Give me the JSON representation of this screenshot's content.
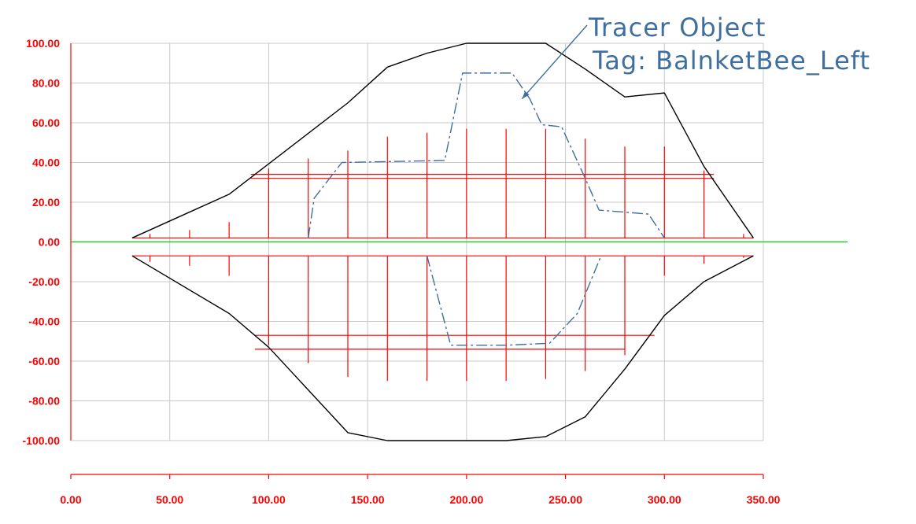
{
  "chart_data": {
    "type": "line",
    "title": "",
    "xlabel": "",
    "ylabel": "",
    "xlim": [
      0,
      350
    ],
    "ylim": [
      -100,
      100
    ],
    "x_ticks": [
      "0.00",
      "50.00",
      "100.00",
      "150.00",
      "200.00",
      "250.00",
      "300.00",
      "350.00"
    ],
    "y_ticks": [
      "100.00",
      "80.00",
      "60.00",
      "40.00",
      "20.00",
      "0.00",
      "-20.00",
      "-40.00",
      "-60.00",
      "-80.00",
      "-100.00"
    ],
    "grid": true,
    "colors": {
      "boundary": "#000000",
      "tracer": "#3f6f9f",
      "centerline": "#00cc00",
      "ticks": "#ff0000",
      "grid": "#c8c8c8"
    },
    "boundary_upper": {
      "x": [
        31,
        80,
        140,
        160,
        180,
        200,
        220,
        240,
        260,
        280,
        300,
        320,
        345
      ],
      "y": [
        2,
        24,
        70,
        88,
        95,
        100,
        100,
        100,
        87,
        73,
        75,
        38,
        2
      ]
    },
    "boundary_lower": {
      "x": [
        31,
        80,
        100,
        140,
        160,
        180,
        200,
        220,
        240,
        260,
        280,
        300,
        320,
        345
      ],
      "y": [
        -7,
        -36,
        -53,
        -96,
        -100,
        -100,
        -100,
        -100,
        -98,
        -88,
        -64,
        -37,
        -20,
        -7
      ]
    },
    "tracer_upper": {
      "x": [
        120,
        123,
        137,
        189,
        198,
        223,
        232,
        238,
        248,
        260,
        267,
        280,
        292,
        300
      ],
      "y": [
        2,
        22,
        40,
        41,
        85,
        85,
        72,
        59,
        58,
        32,
        16,
        15,
        14,
        2
      ]
    },
    "tracer_lower": {
      "x": [
        180,
        192,
        200,
        220,
        242,
        256,
        268
      ],
      "y": [
        -7,
        -52,
        -52,
        -52,
        -51,
        -36,
        -7
      ]
    },
    "bands": [
      {
        "y": 34,
        "x1": 91,
        "x2": 325
      },
      {
        "y": 32,
        "x1": 91,
        "x2": 325
      },
      {
        "y": 2,
        "x1": 31,
        "x2": 345
      },
      {
        "y": -7,
        "x1": 31,
        "x2": 345
      },
      {
        "y": -47,
        "x1": 93,
        "x2": 295
      },
      {
        "y": -54,
        "x1": 93,
        "x2": 280
      }
    ],
    "section_ticks": [
      {
        "x": 40,
        "up": 4,
        "down": -10
      },
      {
        "x": 60,
        "up": 6,
        "down": -12
      },
      {
        "x": 80,
        "up": 10,
        "down": -17
      },
      {
        "x": 100,
        "up": 37,
        "down": -52
      },
      {
        "x": 120,
        "up": 42,
        "down": -61
      },
      {
        "x": 140,
        "up": 46,
        "down": -68
      },
      {
        "x": 160,
        "up": 53,
        "down": -70
      },
      {
        "x": 180,
        "up": 55,
        "down": -70
      },
      {
        "x": 200,
        "up": 57,
        "down": -70
      },
      {
        "x": 220,
        "up": 57,
        "down": -70
      },
      {
        "x": 240,
        "up": 57,
        "down": -69
      },
      {
        "x": 260,
        "up": 52,
        "down": -65
      },
      {
        "x": 280,
        "up": 48,
        "down": -57
      },
      {
        "x": 300,
        "up": 48,
        "down": -17
      },
      {
        "x": 320,
        "up": 36,
        "down": -11
      },
      {
        "x": 340,
        "up": 4,
        "down": -8
      }
    ],
    "annotations": {
      "line1": "Tracer Object",
      "line2": "Tag: BalnketBee_Left",
      "arrow_target": {
        "x": 228,
        "y": 72
      }
    }
  }
}
